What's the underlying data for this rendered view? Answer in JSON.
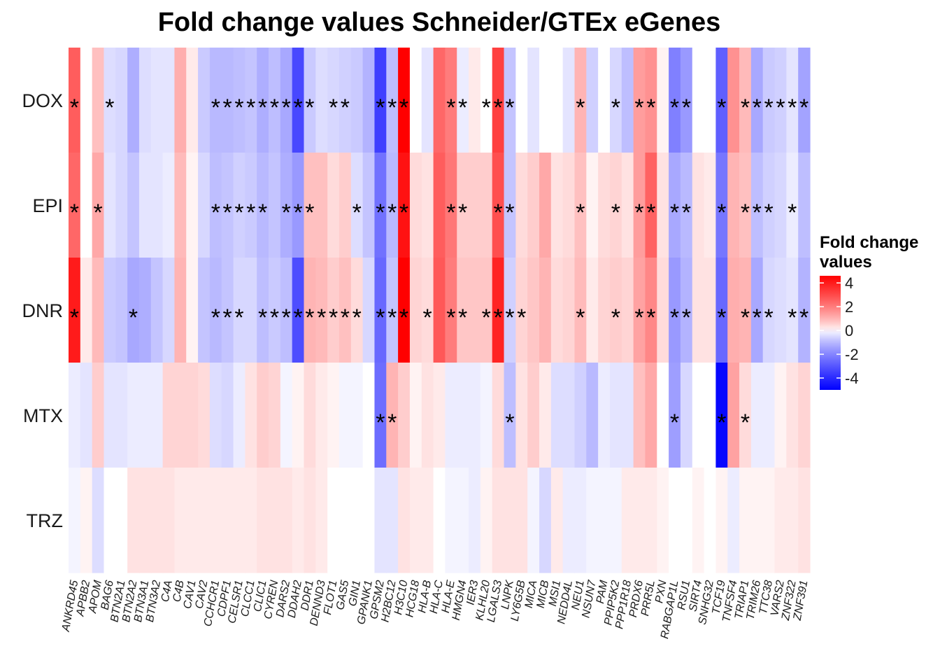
{
  "chart_data": {
    "type": "heatmap",
    "title": "Fold change values Schneider/GTEx eGenes",
    "rows": [
      "DOX",
      "EPI",
      "DNR",
      "MTX",
      "TRZ"
    ],
    "columns": [
      "ANKRD45",
      "APBB2",
      "APOM",
      "BAG6",
      "BTN2A1",
      "BTN2A2",
      "BTN3A1",
      "BTN3A2",
      "C4A",
      "C4B",
      "CAV1",
      "CAV2",
      "CCHCR1",
      "CDPF1",
      "CELSR1",
      "CLCC1",
      "CLIC1",
      "CYREN",
      "DARS2",
      "DDAH2",
      "DDR1",
      "DENND3",
      "FLOT1",
      "GAS5",
      "GIN1",
      "GPANK1",
      "GPSM2",
      "H2BC12",
      "H3C10",
      "HCG18",
      "HLA-B",
      "HLA-C",
      "HLA-E",
      "HMGN4",
      "IER3",
      "KLHL20",
      "LGALS3",
      "LNPK",
      "LY6G5B",
      "MICA",
      "MICB",
      "MSI1",
      "NEDD4L",
      "NEU1",
      "NSUN7",
      "PAM",
      "PPIP5K2",
      "PPP1R18",
      "PRDX6",
      "PRR5L",
      "PXN",
      "RABGAP1L",
      "RSU1",
      "SIRT4",
      "SNHG32",
      "TCF19",
      "TNFSF4",
      "TRIAP1",
      "TRIM26",
      "TTC38",
      "VARS2",
      "ZNF322",
      "ZNF391"
    ],
    "values": [
      [
        2.6,
        0.0,
        0.8,
        -0.4,
        -0.5,
        -1.2,
        -0.4,
        -0.3,
        -0.3,
        1.1,
        0.2,
        -0.7,
        -1.0,
        -1.0,
        -0.9,
        -0.8,
        -1.2,
        -0.9,
        -1.3,
        -3.3,
        -0.7,
        -0.4,
        -0.5,
        -0.6,
        -0.7,
        -1.1,
        -3.5,
        -0.9,
        4.6,
        0.0,
        -0.3,
        2.4,
        2.0,
        -0.2,
        0.2,
        0.0,
        3.2,
        -0.8,
        0.0,
        -0.3,
        0.0,
        0.0,
        -0.3,
        1.0,
        -0.6,
        0.0,
        -0.5,
        -0.9,
        1.4,
        1.6,
        0.1,
        -2.1,
        -1.6,
        0.0,
        0.0,
        -2.8,
        1.6,
        0.9,
        -1.3,
        -0.7,
        -0.6,
        -0.3,
        -1.4
      ],
      [
        2.4,
        0.0,
        1.2,
        -0.3,
        -0.5,
        -0.8,
        -0.3,
        -0.3,
        -0.2,
        0.9,
        0.1,
        -0.5,
        -0.9,
        -0.8,
        -0.6,
        -0.7,
        -1.0,
        -0.8,
        -1.2,
        -1.6,
        0.8,
        0.8,
        0.4,
        0.6,
        -0.4,
        -0.8,
        -2.4,
        -1.0,
        4.2,
        0.4,
        0.3,
        2.6,
        2.1,
        0.6,
        0.6,
        0.6,
        2.9,
        -0.8,
        0.4,
        0.6,
        1.2,
        0.3,
        0.4,
        0.8,
        0.1,
        0.4,
        0.5,
        0.3,
        1.4,
        2.5,
        0.3,
        -1.3,
        -1.0,
        0.3,
        0.2,
        -2.3,
        1.0,
        0.8,
        -0.9,
        -0.6,
        -0.5,
        -0.2,
        -0.9
      ],
      [
        4.0,
        0.2,
        0.9,
        -0.7,
        -0.8,
        -1.3,
        -1.2,
        -0.8,
        -0.5,
        1.0,
        0.1,
        -0.8,
        -1.0,
        -0.8,
        -0.5,
        -0.5,
        -0.9,
        -0.7,
        -0.9,
        -3.2,
        1.0,
        0.9,
        0.6,
        0.8,
        0.4,
        -0.5,
        -2.6,
        -0.8,
        4.6,
        0.5,
        0.4,
        2.7,
        2.0,
        0.7,
        0.7,
        0.7,
        3.8,
        -0.6,
        0.5,
        0.7,
        1.0,
        0.4,
        0.5,
        0.9,
        0.2,
        0.5,
        0.6,
        0.5,
        1.3,
        1.8,
        0.4,
        -1.6,
        -1.1,
        0.3,
        0.3,
        -2.6,
        1.1,
        1.0,
        -1.3,
        -0.5,
        -0.4,
        -0.3,
        -1.1
      ],
      [
        -0.2,
        -0.3,
        0.6,
        -0.3,
        -0.3,
        -0.2,
        -0.2,
        -0.2,
        0.5,
        0.5,
        0.5,
        0.4,
        -0.4,
        -0.5,
        -0.2,
        0.3,
        0.6,
        0.5,
        -0.1,
        0.1,
        0.4,
        0.2,
        0.1,
        -0.1,
        -0.1,
        0.0,
        -2.5,
        1.0,
        0.6,
        0.1,
        0.3,
        0.2,
        -0.2,
        -0.2,
        -0.2,
        -0.1,
        0.4,
        -0.9,
        0.3,
        0.6,
        0.2,
        -0.4,
        -0.4,
        -0.6,
        -1.0,
        -0.2,
        -0.3,
        -0.3,
        0.8,
        1.2,
        0.0,
        -1.5,
        -0.5,
        0.0,
        0.0,
        -4.8,
        1.3,
        0.4,
        -0.2,
        -0.2,
        0.1,
        0.3,
        0.5
      ],
      [
        -0.1,
        0.1,
        -0.4,
        0.0,
        0.0,
        0.3,
        0.3,
        0.3,
        0.3,
        0.2,
        0.2,
        0.2,
        0.2,
        0.2,
        0.2,
        0.2,
        0.3,
        0.3,
        0.3,
        0.2,
        0.3,
        0.2,
        0.0,
        0.0,
        0.0,
        0.0,
        -0.3,
        -0.3,
        0.3,
        0.2,
        0.2,
        0.0,
        -0.1,
        -0.1,
        -0.2,
        0.1,
        0.3,
        0.3,
        0.3,
        -0.1,
        -0.5,
        0.2,
        -0.2,
        -0.2,
        -0.1,
        -0.1,
        -0.1,
        0.2,
        0.2,
        0.2,
        0.1,
        0.0,
        0.0,
        0.1,
        0.0,
        0.1,
        -0.2,
        0.1,
        0.1,
        0.1,
        0.2,
        0.2,
        0.3
      ]
    ],
    "significant": {
      "DOX": [
        0,
        3,
        12,
        13,
        14,
        15,
        16,
        17,
        18,
        19,
        20,
        22,
        23,
        26,
        27,
        28,
        32,
        33,
        35,
        36,
        37,
        43,
        46,
        48,
        49,
        51,
        52,
        55,
        57,
        58,
        59,
        60,
        61,
        62
      ],
      "EPI": [
        0,
        2,
        12,
        13,
        14,
        15,
        16,
        18,
        19,
        20,
        24,
        26,
        27,
        28,
        32,
        33,
        36,
        37,
        43,
        46,
        48,
        49,
        51,
        52,
        55,
        57,
        58,
        59,
        61
      ],
      "DNR": [
        0,
        5,
        12,
        13,
        14,
        16,
        17,
        18,
        19,
        20,
        21,
        22,
        23,
        24,
        26,
        27,
        28,
        30,
        32,
        33,
        35,
        36,
        37,
        38,
        43,
        46,
        48,
        49,
        51,
        52,
        55,
        57,
        58,
        59,
        61,
        62
      ],
      "MTX": [
        26,
        27,
        37,
        51,
        55,
        57
      ],
      "TRZ": []
    },
    "significance_marker": "*",
    "legend": {
      "title_lines": [
        "Fold change",
        "values"
      ],
      "ticks": [
        "4",
        "2",
        "0",
        "-2",
        "-4"
      ],
      "tick_values": [
        4,
        2,
        0,
        -2,
        -4
      ],
      "range": [
        -5,
        4.6
      ],
      "placement": "right"
    },
    "colors": {
      "low": "#0000ff",
      "mid": "#ffffff",
      "high": "#ff0000"
    }
  }
}
